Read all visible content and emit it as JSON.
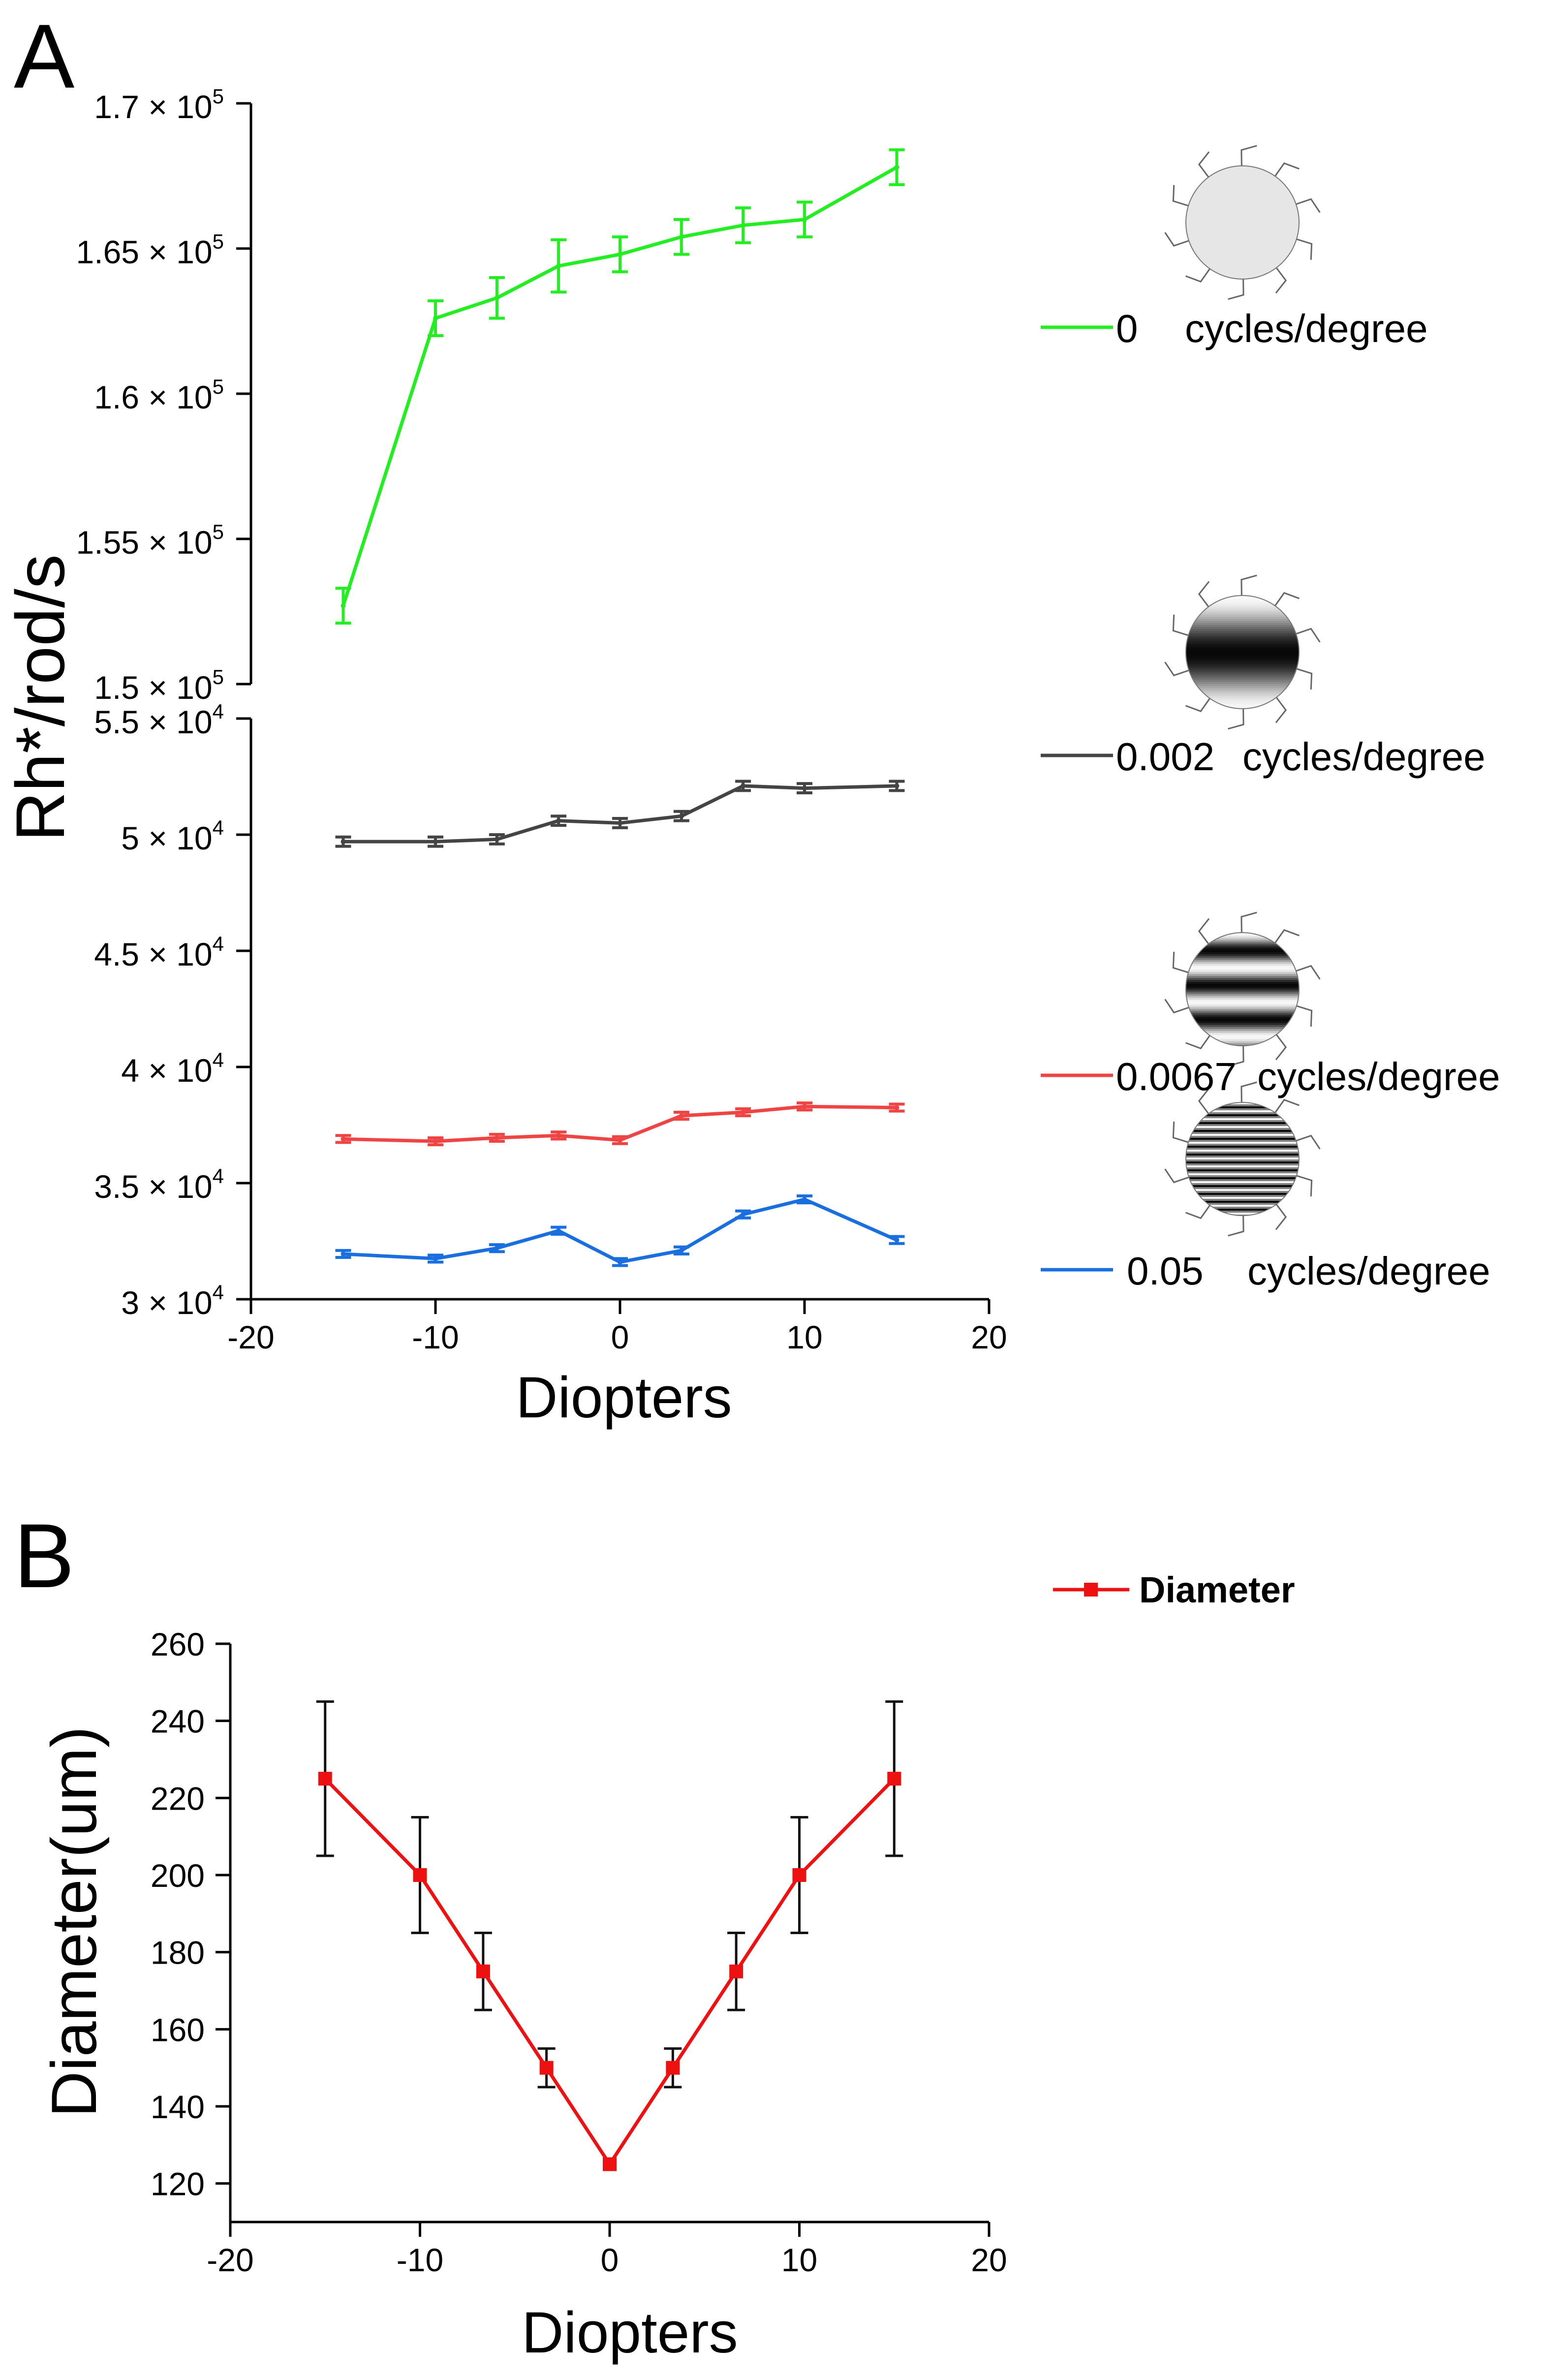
{
  "panels": {
    "a_label": "A",
    "b_label": "B"
  },
  "chart_data": [
    {
      "type": "line",
      "panel": "A",
      "xlabel": "Diopters",
      "ylabel": "Rh*/rod/s",
      "xlim": [
        -20,
        20
      ],
      "x_ticks": [
        -20,
        -10,
        0,
        10,
        20
      ],
      "x_tick_labels": [
        "-20",
        "-10",
        "0",
        "10",
        "20"
      ],
      "y_axis_break": true,
      "upper_segment": {
        "ylim": [
          150000,
          170000
        ],
        "ticks": [
          {
            "value": 170000,
            "mantissa": "1.7",
            "exponent": "5"
          },
          {
            "value": 165000,
            "mantissa": "1.65",
            "exponent": "5"
          },
          {
            "value": 160000,
            "mantissa": "1.6",
            "exponent": "5"
          },
          {
            "value": 155000,
            "mantissa": "1.55",
            "exponent": "5"
          },
          {
            "value": 150000,
            "mantissa": "1.5",
            "exponent": "5"
          }
        ]
      },
      "lower_segment": {
        "ylim": [
          30000,
          55000
        ],
        "ticks": [
          {
            "value": 55000,
            "mantissa": "5.5",
            "exponent": "4"
          },
          {
            "value": 50000,
            "mantissa": "5",
            "exponent": "4"
          },
          {
            "value": 45000,
            "mantissa": "4.5",
            "exponent": "4"
          },
          {
            "value": 40000,
            "mantissa": "4",
            "exponent": "4"
          },
          {
            "value": 35000,
            "mantissa": "3.5",
            "exponent": "4"
          },
          {
            "value": 30000,
            "mantissa": "3",
            "exponent": "4"
          }
        ]
      },
      "x": [
        -15,
        -10,
        -6.67,
        -3.33,
        0,
        3.33,
        6.67,
        10,
        15
      ],
      "series": [
        {
          "name": "0",
          "unit": "cycles/degree",
          "color": "#22ee22",
          "segment": "upper",
          "values": [
            152700,
            162600,
            163300,
            164400,
            164800,
            165400,
            165800,
            166000,
            167800
          ],
          "errors": [
            600,
            600,
            700,
            900,
            600,
            600,
            600,
            600,
            600
          ]
        },
        {
          "name": "0.002",
          "unit": "cycles/degree",
          "color": "#444444",
          "segment": "lower",
          "values": [
            49700,
            49700,
            49800,
            50600,
            50500,
            50800,
            52100,
            52000,
            52100
          ],
          "errors": [
            200,
            200,
            200,
            200,
            200,
            200,
            200,
            200,
            200
          ]
        },
        {
          "name": "0.0067",
          "unit": "cycles/degree",
          "color": "#ee4444",
          "segment": "lower",
          "values": [
            36900,
            36800,
            36950,
            37050,
            36850,
            37900,
            38050,
            38300,
            38250
          ],
          "errors": [
            150,
            150,
            150,
            150,
            150,
            150,
            150,
            150,
            150
          ]
        },
        {
          "name": "0.05",
          "unit": "cycles/degree",
          "color": "#1a6fe0",
          "segment": "lower",
          "values": [
            31950,
            31750,
            32200,
            32950,
            31600,
            32100,
            33650,
            34300,
            32550
          ],
          "errors": [
            150,
            150,
            150,
            150,
            150,
            150,
            150,
            150,
            150
          ]
        }
      ]
    },
    {
      "type": "line",
      "panel": "B",
      "xlabel": "Diopters",
      "ylabel": "Diameter(um)",
      "xlim": [
        -20,
        20
      ],
      "ylim": [
        110,
        260
      ],
      "x_ticks": [
        -20,
        -10,
        0,
        10,
        20
      ],
      "x_tick_labels": [
        "-20",
        "-10",
        "0",
        "10",
        "20"
      ],
      "y_ticks": [
        120,
        140,
        160,
        180,
        200,
        220,
        240,
        260
      ],
      "y_tick_labels": [
        "120",
        "140",
        "160",
        "180",
        "200",
        "220",
        "240",
        "260"
      ],
      "legend_position": "top-right",
      "x": [
        -15,
        -10,
        -6.67,
        -3.33,
        0,
        3.33,
        6.67,
        10,
        15
      ],
      "series": [
        {
          "name": "Diameter",
          "color": "#ee1111",
          "marker": "square",
          "values": [
            225,
            200,
            175,
            150,
            125,
            150,
            175,
            200,
            225
          ],
          "errors": [
            20,
            15,
            10,
            5,
            0,
            5,
            10,
            15,
            20
          ]
        }
      ]
    }
  ]
}
